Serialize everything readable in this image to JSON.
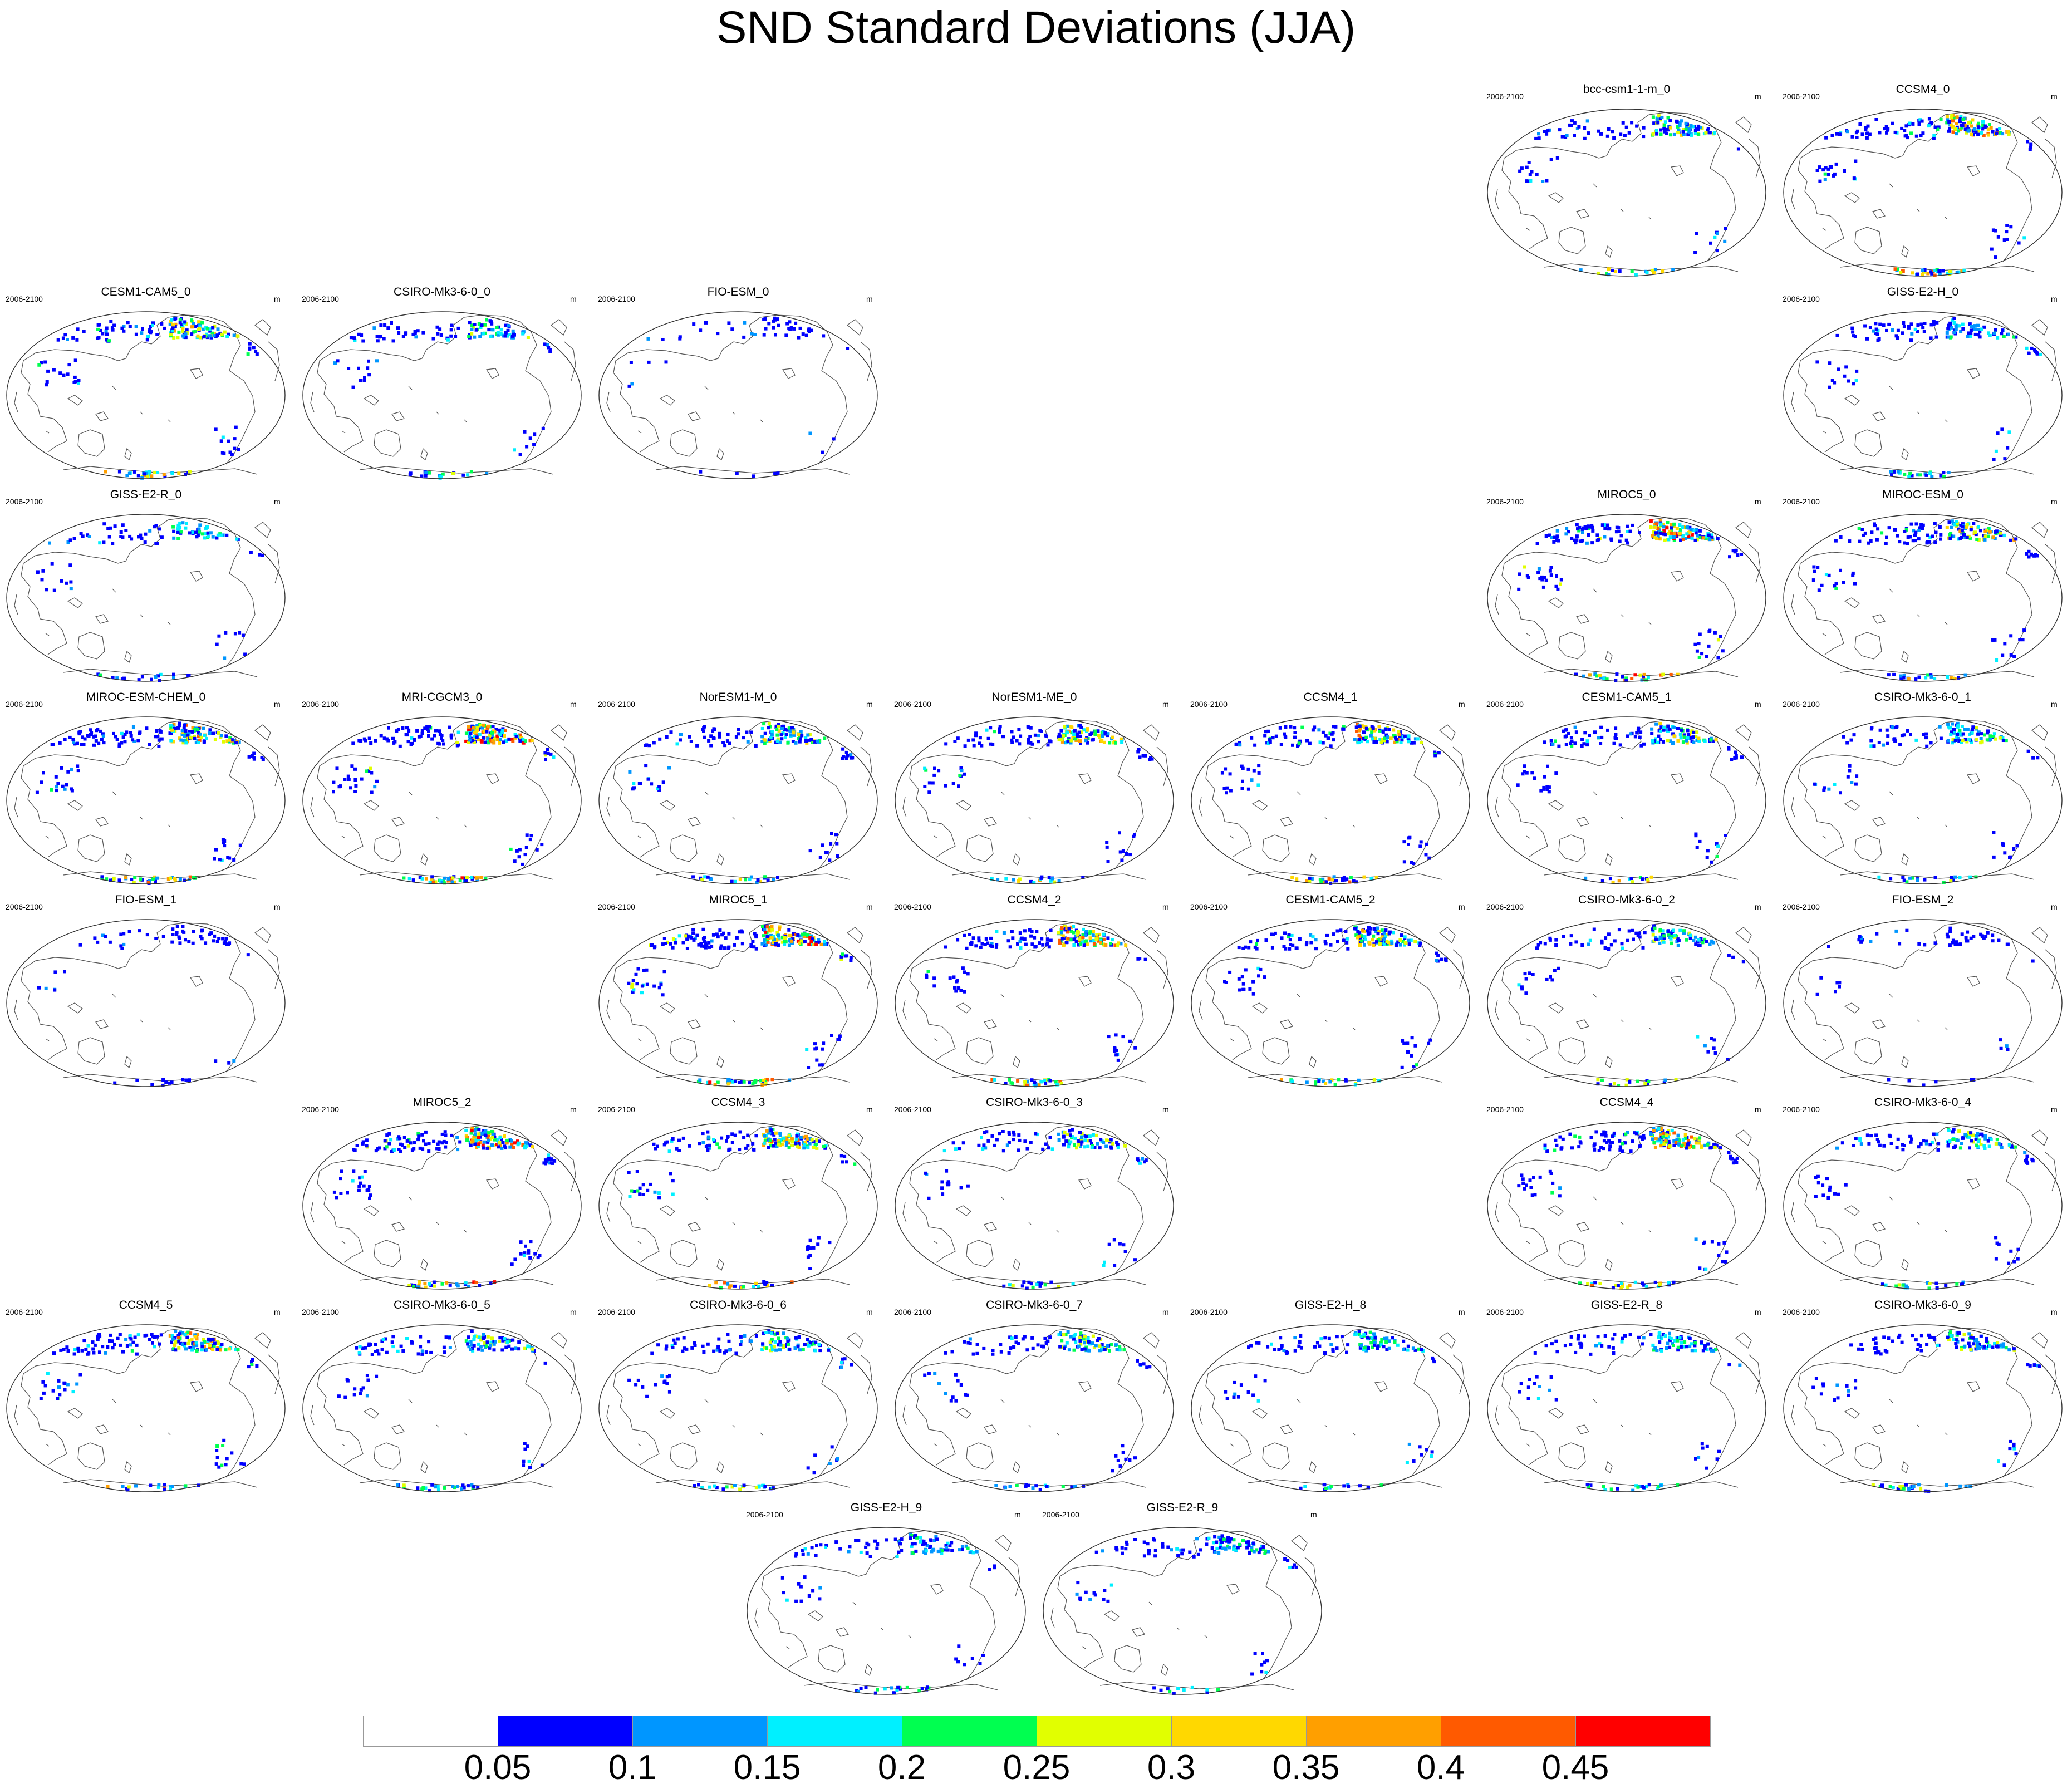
{
  "title": "SND Standard Deviations (JJA)",
  "period": "2006-2100",
  "units": "m",
  "colorbar": {
    "colors": [
      "#ffffff",
      "#0000ff",
      "#0096ff",
      "#00f0ff",
      "#00ff50",
      "#e1ff00",
      "#ffd800",
      "#ff9f00",
      "#ff5a00",
      "#ff0000"
    ],
    "labels": [
      "0.05",
      "0.1",
      "0.15",
      "0.2",
      "0.25",
      "0.3",
      "0.35",
      "0.4",
      "0.45"
    ]
  },
  "grid_columns": 7,
  "panels": [
    {
      "title": "bcc-csm1-1-m_0",
      "row": 0,
      "col": 5,
      "intensity": 0.55
    },
    {
      "title": "CCSM4_0",
      "row": 0,
      "col": 6,
      "intensity": 0.75
    },
    {
      "title": "CESM1-CAM5_0",
      "row": 1,
      "col": 0,
      "intensity": 0.7
    },
    {
      "title": "CSIRO-Mk3-6-0_0",
      "row": 1,
      "col": 1,
      "intensity": 0.45
    },
    {
      "title": "FIO-ESM_0",
      "row": 1,
      "col": 2,
      "intensity": 0.05
    },
    {
      "title": "GISS-E2-H_0",
      "row": 1,
      "col": 6,
      "intensity": 0.4
    },
    {
      "title": "GISS-E2-R_0",
      "row": 2,
      "col": 0,
      "intensity": 0.4
    },
    {
      "title": "MIROC5_0",
      "row": 2,
      "col": 5,
      "intensity": 0.9
    },
    {
      "title": "MIROC-ESM_0",
      "row": 2,
      "col": 6,
      "intensity": 0.65
    },
    {
      "title": "MIROC-ESM-CHEM_0",
      "row": 3,
      "col": 0,
      "intensity": 0.8
    },
    {
      "title": "MRI-CGCM3_0",
      "row": 3,
      "col": 1,
      "intensity": 0.95
    },
    {
      "title": "NorESM1-M_0",
      "row": 3,
      "col": 2,
      "intensity": 0.6
    },
    {
      "title": "NorESM1-ME_0",
      "row": 3,
      "col": 3,
      "intensity": 0.7
    },
    {
      "title": "CCSM4_1",
      "row": 3,
      "col": 4,
      "intensity": 0.75
    },
    {
      "title": "CESM1-CAM5_1",
      "row": 3,
      "col": 5,
      "intensity": 0.7
    },
    {
      "title": "CSIRO-Mk3-6-0_1",
      "row": 3,
      "col": 6,
      "intensity": 0.45
    },
    {
      "title": "FIO-ESM_1",
      "row": 4,
      "col": 0,
      "intensity": 0.1
    },
    {
      "title": "MIROC5_1",
      "row": 4,
      "col": 2,
      "intensity": 0.9
    },
    {
      "title": "CCSM4_2",
      "row": 4,
      "col": 3,
      "intensity": 0.75
    },
    {
      "title": "CESM1-CAM5_2",
      "row": 4,
      "col": 4,
      "intensity": 0.7
    },
    {
      "title": "CSIRO-Mk3-6-0_2",
      "row": 4,
      "col": 5,
      "intensity": 0.45
    },
    {
      "title": "FIO-ESM_2",
      "row": 4,
      "col": 6,
      "intensity": 0.1
    },
    {
      "title": "MIROC5_2",
      "row": 5,
      "col": 1,
      "intensity": 0.9
    },
    {
      "title": "CCSM4_3",
      "row": 5,
      "col": 2,
      "intensity": 0.75
    },
    {
      "title": "CSIRO-Mk3-6-0_3",
      "row": 5,
      "col": 3,
      "intensity": 0.45
    },
    {
      "title": "CCSM4_4",
      "row": 5,
      "col": 5,
      "intensity": 0.75
    },
    {
      "title": "CSIRO-Mk3-6-0_4",
      "row": 5,
      "col": 6,
      "intensity": 0.45
    },
    {
      "title": "CCSM4_5",
      "row": 6,
      "col": 0,
      "intensity": 0.75
    },
    {
      "title": "CSIRO-Mk3-6-0_5",
      "row": 6,
      "col": 1,
      "intensity": 0.45
    },
    {
      "title": "CSIRO-Mk3-6-0_6",
      "row": 6,
      "col": 2,
      "intensity": 0.45
    },
    {
      "title": "CSIRO-Mk3-6-0_7",
      "row": 6,
      "col": 3,
      "intensity": 0.45
    },
    {
      "title": "GISS-E2-H_8",
      "row": 6,
      "col": 4,
      "intensity": 0.4
    },
    {
      "title": "GISS-E2-R_8",
      "row": 6,
      "col": 5,
      "intensity": 0.4
    },
    {
      "title": "CSIRO-Mk3-6-0_9",
      "row": 6,
      "col": 6,
      "intensity": 0.45
    },
    {
      "title": "GISS-E2-H_9",
      "row": 7,
      "col": 2.5,
      "intensity": 0.4
    },
    {
      "title": "GISS-E2-R_9",
      "row": 7,
      "col": 3.5,
      "intensity": 0.4
    }
  ]
}
